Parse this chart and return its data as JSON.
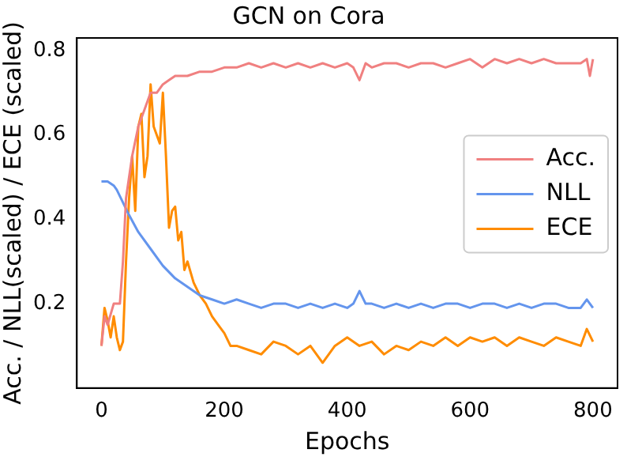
{
  "chart_data": {
    "type": "line",
    "title": "GCN on Cora",
    "xlabel": "Epochs",
    "ylabel": "Acc. / NLL(scaled) / ECE (scaled)",
    "xlim": [
      -40,
      840
    ],
    "xticks": [
      0,
      200,
      400,
      600,
      800
    ],
    "ylim": [
      0,
      0.83
    ],
    "yticks": [
      0.2,
      0.4,
      0.6,
      0.8
    ],
    "grid": false,
    "legend": "right",
    "series": [
      {
        "name": "Acc.",
        "color": "#f08080",
        "x": [
          0,
          5,
          10,
          20,
          30,
          35,
          40,
          45,
          50,
          60,
          70,
          80,
          90,
          100,
          110,
          120,
          140,
          160,
          180,
          200,
          220,
          240,
          260,
          280,
          300,
          320,
          340,
          360,
          380,
          400,
          410,
          420,
          430,
          440,
          460,
          480,
          500,
          520,
          540,
          560,
          580,
          600,
          620,
          640,
          660,
          680,
          700,
          720,
          740,
          760,
          780,
          790,
          795,
          800
        ],
        "values": [
          0.1,
          0.17,
          0.15,
          0.2,
          0.2,
          0.3,
          0.45,
          0.5,
          0.55,
          0.62,
          0.66,
          0.7,
          0.7,
          0.72,
          0.73,
          0.74,
          0.74,
          0.75,
          0.75,
          0.76,
          0.76,
          0.77,
          0.76,
          0.77,
          0.76,
          0.77,
          0.76,
          0.77,
          0.76,
          0.77,
          0.76,
          0.73,
          0.77,
          0.76,
          0.77,
          0.77,
          0.76,
          0.77,
          0.77,
          0.76,
          0.77,
          0.78,
          0.76,
          0.78,
          0.77,
          0.78,
          0.77,
          0.78,
          0.77,
          0.77,
          0.77,
          0.78,
          0.74,
          0.78
        ]
      },
      {
        "name": "NLL",
        "color": "#6495ed",
        "x": [
          0,
          10,
          20,
          25,
          35,
          45,
          60,
          80,
          100,
          120,
          140,
          160,
          180,
          200,
          220,
          240,
          260,
          280,
          300,
          320,
          340,
          360,
          380,
          400,
          410,
          420,
          430,
          440,
          460,
          480,
          500,
          520,
          540,
          560,
          580,
          600,
          620,
          640,
          660,
          680,
          700,
          720,
          740,
          760,
          780,
          790,
          800
        ],
        "values": [
          0.49,
          0.49,
          0.48,
          0.47,
          0.44,
          0.41,
          0.37,
          0.33,
          0.29,
          0.26,
          0.24,
          0.22,
          0.21,
          0.2,
          0.21,
          0.2,
          0.19,
          0.2,
          0.2,
          0.19,
          0.2,
          0.19,
          0.2,
          0.19,
          0.2,
          0.23,
          0.2,
          0.2,
          0.19,
          0.2,
          0.19,
          0.2,
          0.19,
          0.2,
          0.2,
          0.19,
          0.2,
          0.2,
          0.19,
          0.2,
          0.19,
          0.2,
          0.2,
          0.19,
          0.19,
          0.21,
          0.19
        ]
      },
      {
        "name": "ECE",
        "color": "#ff8c00",
        "x": [
          0,
          5,
          10,
          15,
          20,
          25,
          30,
          35,
          40,
          45,
          50,
          55,
          60,
          65,
          70,
          75,
          80,
          85,
          90,
          95,
          100,
          105,
          110,
          115,
          120,
          125,
          130,
          135,
          140,
          150,
          160,
          170,
          180,
          190,
          200,
          210,
          220,
          240,
          260,
          280,
          300,
          320,
          340,
          360,
          380,
          400,
          420,
          440,
          460,
          480,
          500,
          520,
          540,
          560,
          580,
          600,
          620,
          640,
          660,
          680,
          700,
          720,
          740,
          760,
          780,
          790,
          800
        ],
        "values": [
          0.1,
          0.19,
          0.16,
          0.12,
          0.17,
          0.12,
          0.09,
          0.11,
          0.3,
          0.45,
          0.55,
          0.42,
          0.62,
          0.65,
          0.5,
          0.55,
          0.72,
          0.62,
          0.6,
          0.58,
          0.7,
          0.55,
          0.38,
          0.42,
          0.43,
          0.35,
          0.37,
          0.28,
          0.3,
          0.25,
          0.22,
          0.2,
          0.17,
          0.15,
          0.13,
          0.1,
          0.1,
          0.09,
          0.08,
          0.11,
          0.1,
          0.08,
          0.1,
          0.06,
          0.1,
          0.12,
          0.1,
          0.11,
          0.08,
          0.1,
          0.09,
          0.11,
          0.1,
          0.12,
          0.1,
          0.12,
          0.11,
          0.12,
          0.1,
          0.12,
          0.11,
          0.1,
          0.12,
          0.11,
          0.1,
          0.14,
          0.11
        ]
      }
    ]
  }
}
